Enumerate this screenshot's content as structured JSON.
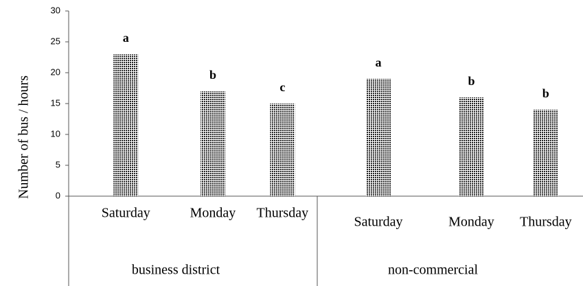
{
  "chart_data": {
    "type": "bar",
    "y_label": "Number of bus / hours",
    "ylim": [
      0,
      30
    ],
    "yticks": [
      0,
      5,
      10,
      15,
      20,
      25,
      30
    ],
    "color": "#222222",
    "groups": [
      {
        "name": "business district",
        "categories": [
          "Saturday",
          "Monday",
          "Thursday"
        ],
        "values": [
          23,
          17,
          15
        ],
        "annotations": [
          "a",
          "b",
          "c"
        ]
      },
      {
        "name": "non-commercial",
        "categories": [
          "Saturday",
          "Monday",
          "Thursday"
        ],
        "values": [
          19,
          16,
          14
        ],
        "annotations": [
          "a",
          "b",
          "b"
        ]
      }
    ]
  }
}
